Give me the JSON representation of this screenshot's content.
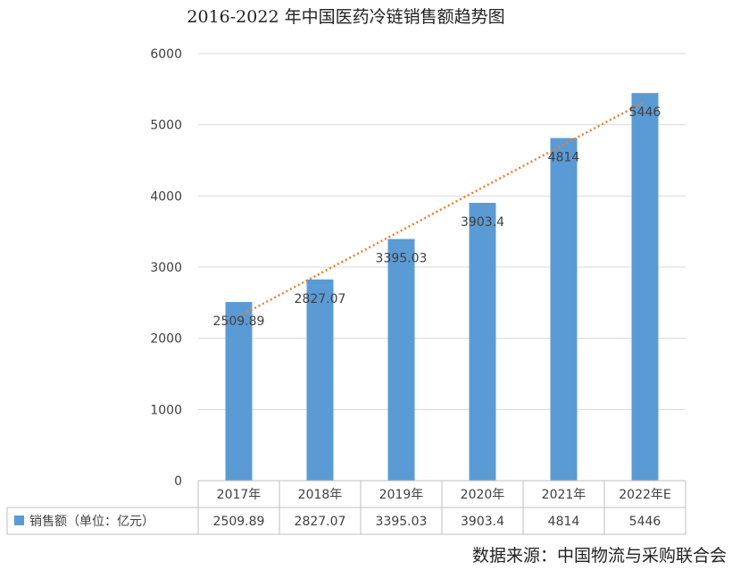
{
  "chart_data": {
    "type": "bar",
    "title": "2016-2022 年中国医药冷链销售额趋势图",
    "categories": [
      "2017年",
      "2018年",
      "2019年",
      "2020年",
      "2021年",
      "2022年E"
    ],
    "series": [
      {
        "name": "销售额（单位：亿元）",
        "values": [
          2509.89,
          2827.07,
          3395.03,
          3903.4,
          4814,
          5446
        ],
        "labels": [
          "2509.89",
          "2827.07",
          "3395.03",
          "3903.4",
          "4814",
          "5446"
        ]
      }
    ],
    "ylim": [
      0,
      6000
    ],
    "yticks": [
      "0",
      "1000",
      "2000",
      "3000",
      "4000",
      "5000",
      "6000"
    ],
    "grid": true,
    "trendline": "linear",
    "data_table": true,
    "colors": {
      "bar": "#5B9BD5",
      "trend": "#ED7D31",
      "grid": "#D9D9D9"
    }
  },
  "source_text": "数据来源：中国物流与采购联合会"
}
